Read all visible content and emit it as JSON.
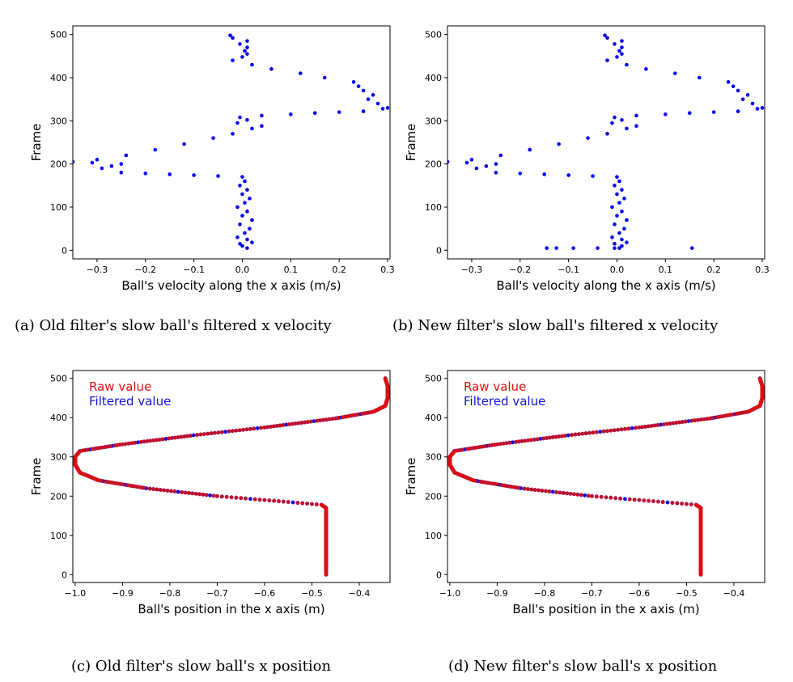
{
  "chart_data": [
    {
      "id": "a",
      "type": "scatter",
      "caption": "(a) Old filter's slow ball's filtered x velocity",
      "xlabel": "Ball's velocity along the x axis (m/s)",
      "ylabel": "Frame",
      "xlim": [
        -0.35,
        0.305
      ],
      "ylim": [
        -20,
        520
      ],
      "xticks": [
        -0.3,
        -0.2,
        -0.1,
        0,
        0.1,
        0.2,
        0.3
      ],
      "xtick_labels": [
        "−0.3",
        "−0.2",
        "−0.1",
        "0.0",
        "0.1",
        "0.2",
        "0.3"
      ],
      "yticks": [
        0,
        100,
        200,
        300,
        400,
        500
      ],
      "ytick_labels": [
        "0",
        "100",
        "200",
        "300",
        "400",
        "500"
      ],
      "grid": false,
      "series": [
        {
          "color": "#0000ee",
          "points": [
            [
              0.01,
              5
            ],
            [
              0.0,
              10
            ],
            [
              -0.005,
              15
            ],
            [
              0.02,
              18
            ],
            [
              0.01,
              25
            ],
            [
              -0.01,
              30
            ],
            [
              0.005,
              40
            ],
            [
              0.015,
              50
            ],
            [
              -0.005,
              60
            ],
            [
              0.02,
              70
            ],
            [
              0.0,
              80
            ],
            [
              0.01,
              90
            ],
            [
              -0.01,
              100
            ],
            [
              0.005,
              110
            ],
            [
              0.015,
              120
            ],
            [
              0.0,
              130
            ],
            [
              0.01,
              140
            ],
            [
              -0.005,
              150
            ],
            [
              0.005,
              160
            ],
            [
              0.0,
              170
            ],
            [
              -0.05,
              172
            ],
            [
              -0.1,
              174
            ],
            [
              -0.15,
              176
            ],
            [
              -0.2,
              178
            ],
            [
              -0.25,
              180
            ],
            [
              -0.29,
              190
            ],
            [
              -0.27,
              195
            ],
            [
              -0.25,
              200
            ],
            [
              -0.31,
              203
            ],
            [
              -0.35,
              205
            ],
            [
              -0.3,
              210
            ],
            [
              -0.24,
              220
            ],
            [
              -0.18,
              233
            ],
            [
              -0.12,
              246
            ],
            [
              -0.06,
              260
            ],
            [
              -0.02,
              270
            ],
            [
              0.02,
              282
            ],
            [
              0.04,
              288
            ],
            [
              -0.01,
              295
            ],
            [
              0.01,
              302
            ],
            [
              -0.005,
              308
            ],
            [
              0.04,
              312
            ],
            [
              0.1,
              315
            ],
            [
              0.15,
              318
            ],
            [
              0.2,
              320
            ],
            [
              0.25,
              322
            ],
            [
              0.29,
              328
            ],
            [
              0.3,
              330
            ],
            [
              0.28,
              340
            ],
            [
              0.26,
              350
            ],
            [
              0.27,
              360
            ],
            [
              0.25,
              370
            ],
            [
              0.24,
              380
            ],
            [
              0.23,
              390
            ],
            [
              0.17,
              400
            ],
            [
              0.12,
              410
            ],
            [
              0.06,
              420
            ],
            [
              0.02,
              430
            ],
            [
              -0.02,
              440
            ],
            [
              0.0,
              448
            ],
            [
              0.01,
              455
            ],
            [
              0.005,
              462
            ],
            [
              0.01,
              470
            ],
            [
              -0.005,
              478
            ],
            [
              0.01,
              485
            ],
            [
              -0.02,
              492
            ],
            [
              -0.025,
              498
            ]
          ]
        }
      ]
    },
    {
      "id": "b",
      "type": "scatter",
      "caption": "(b) New filter's slow ball's filtered x velocity",
      "xlabel": "Ball's velocity along the x axis (m/s)",
      "ylabel": "Frame",
      "xlim": [
        -0.35,
        0.305
      ],
      "ylim": [
        -20,
        520
      ],
      "xticks": [
        -0.3,
        -0.2,
        -0.1,
        0,
        0.1,
        0.2,
        0.3
      ],
      "xtick_labels": [
        "−0.3",
        "−0.2",
        "−0.1",
        "0.0",
        "0.1",
        "0.2",
        "0.3"
      ],
      "yticks": [
        0,
        100,
        200,
        300,
        400,
        500
      ],
      "ytick_labels": [
        "0",
        "100",
        "200",
        "300",
        "400",
        "500"
      ],
      "grid": false,
      "series": [
        {
          "color": "#0000ee",
          "points": [
            [
              -0.145,
              5
            ],
            [
              -0.125,
              5
            ],
            [
              -0.09,
              5
            ],
            [
              -0.04,
              5
            ],
            [
              -0.005,
              5
            ],
            [
              0.005,
              5
            ],
            [
              0.155,
              5
            ],
            [
              0.01,
              10
            ],
            [
              -0.005,
              15
            ],
            [
              0.02,
              18
            ],
            [
              0.01,
              25
            ],
            [
              -0.01,
              30
            ],
            [
              0.005,
              40
            ],
            [
              0.015,
              50
            ],
            [
              -0.005,
              60
            ],
            [
              0.02,
              70
            ],
            [
              0.0,
              80
            ],
            [
              0.01,
              90
            ],
            [
              -0.01,
              100
            ],
            [
              0.005,
              110
            ],
            [
              0.015,
              120
            ],
            [
              0.0,
              130
            ],
            [
              0.01,
              140
            ],
            [
              -0.005,
              150
            ],
            [
              0.005,
              160
            ],
            [
              0.0,
              170
            ],
            [
              -0.05,
              172
            ],
            [
              -0.1,
              174
            ],
            [
              -0.15,
              176
            ],
            [
              -0.2,
              178
            ],
            [
              -0.25,
              180
            ],
            [
              -0.29,
              190
            ],
            [
              -0.27,
              195
            ],
            [
              -0.25,
              200
            ],
            [
              -0.31,
              203
            ],
            [
              -0.35,
              205
            ],
            [
              -0.3,
              210
            ],
            [
              -0.24,
              220
            ],
            [
              -0.18,
              233
            ],
            [
              -0.12,
              246
            ],
            [
              -0.06,
              260
            ],
            [
              -0.02,
              270
            ],
            [
              0.02,
              282
            ],
            [
              0.04,
              288
            ],
            [
              -0.01,
              295
            ],
            [
              0.01,
              302
            ],
            [
              -0.005,
              308
            ],
            [
              0.04,
              312
            ],
            [
              0.1,
              315
            ],
            [
              0.15,
              318
            ],
            [
              0.2,
              320
            ],
            [
              0.25,
              322
            ],
            [
              0.29,
              328
            ],
            [
              0.3,
              330
            ],
            [
              0.28,
              340
            ],
            [
              0.26,
              350
            ],
            [
              0.27,
              360
            ],
            [
              0.25,
              370
            ],
            [
              0.24,
              380
            ],
            [
              0.23,
              390
            ],
            [
              0.17,
              400
            ],
            [
              0.12,
              410
            ],
            [
              0.06,
              420
            ],
            [
              0.02,
              430
            ],
            [
              -0.02,
              440
            ],
            [
              0.0,
              448
            ],
            [
              0.01,
              455
            ],
            [
              0.005,
              462
            ],
            [
              0.01,
              470
            ],
            [
              -0.005,
              478
            ],
            [
              0.01,
              485
            ],
            [
              -0.02,
              492
            ],
            [
              -0.025,
              498
            ]
          ]
        }
      ]
    },
    {
      "id": "c",
      "type": "scatter",
      "caption": "(c) Old filter's slow ball's x position",
      "xlabel": "Ball's position in the x axis (m)",
      "ylabel": "Frame",
      "xlim": [
        -1.005,
        -0.335
      ],
      "ylim": [
        -20,
        520
      ],
      "xticks": [
        -1.0,
        -0.9,
        -0.8,
        -0.7,
        -0.6,
        -0.5,
        -0.4
      ],
      "xtick_labels": [
        "−1.0",
        "−0.9",
        "−0.8",
        "−0.7",
        "−0.6",
        "−0.5",
        "−0.4"
      ],
      "yticks": [
        0,
        100,
        200,
        300,
        400,
        500
      ],
      "ytick_labels": [
        "0",
        "100",
        "200",
        "300",
        "400",
        "500"
      ],
      "grid": false,
      "legend": {
        "position": "top-left",
        "entries": [
          {
            "name": "Raw value",
            "color": "#dd1111"
          },
          {
            "name": "Filtered value",
            "color": "#1111dd"
          }
        ]
      },
      "curve": [
        [
          -0.47,
          0
        ],
        [
          -0.47,
          60
        ],
        [
          -0.47,
          120
        ],
        [
          -0.47,
          170
        ],
        [
          -0.48,
          178
        ],
        [
          -0.55,
          185
        ],
        [
          -0.7,
          200
        ],
        [
          -0.85,
          220
        ],
        [
          -0.95,
          240
        ],
        [
          -0.99,
          260
        ],
        [
          -1.0,
          280
        ],
        [
          -1.0,
          300
        ],
        [
          -0.99,
          315
        ],
        [
          -0.9,
          332
        ],
        [
          -0.75,
          355
        ],
        [
          -0.6,
          375
        ],
        [
          -0.45,
          398
        ],
        [
          -0.37,
          415
        ],
        [
          -0.345,
          430
        ],
        [
          -0.34,
          450
        ],
        [
          -0.34,
          480
        ],
        [
          -0.345,
          500
        ]
      ]
    },
    {
      "id": "d",
      "type": "scatter",
      "caption": "(d) New filter's slow ball's x position",
      "xlabel": "Ball's position in the x axis (m)",
      "ylabel": "Frame",
      "xlim": [
        -1.005,
        -0.335
      ],
      "ylim": [
        -20,
        520
      ],
      "xticks": [
        -1.0,
        -0.9,
        -0.8,
        -0.7,
        -0.6,
        -0.5,
        -0.4
      ],
      "xtick_labels": [
        "−1.0",
        "−0.9",
        "−0.8",
        "−0.7",
        "−0.6",
        "−0.5",
        "−0.4"
      ],
      "yticks": [
        0,
        100,
        200,
        300,
        400,
        500
      ],
      "ytick_labels": [
        "0",
        "100",
        "200",
        "300",
        "400",
        "500"
      ],
      "grid": false,
      "legend": {
        "position": "top-left",
        "entries": [
          {
            "name": "Raw value",
            "color": "#dd1111"
          },
          {
            "name": "Filtered value",
            "color": "#1111dd"
          }
        ]
      },
      "curve": [
        [
          -0.47,
          0
        ],
        [
          -0.47,
          60
        ],
        [
          -0.47,
          120
        ],
        [
          -0.47,
          170
        ],
        [
          -0.48,
          178
        ],
        [
          -0.55,
          185
        ],
        [
          -0.7,
          200
        ],
        [
          -0.85,
          220
        ],
        [
          -0.95,
          240
        ],
        [
          -0.99,
          260
        ],
        [
          -1.0,
          280
        ],
        [
          -1.0,
          300
        ],
        [
          -0.99,
          315
        ],
        [
          -0.9,
          332
        ],
        [
          -0.75,
          355
        ],
        [
          -0.6,
          375
        ],
        [
          -0.45,
          398
        ],
        [
          -0.37,
          415
        ],
        [
          -0.345,
          430
        ],
        [
          -0.34,
          450
        ],
        [
          -0.34,
          480
        ],
        [
          -0.345,
          500
        ]
      ]
    }
  ]
}
